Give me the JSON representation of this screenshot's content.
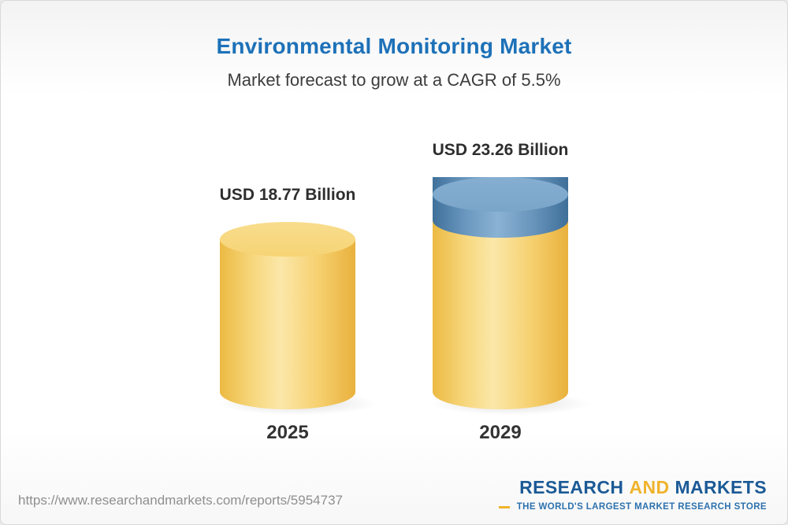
{
  "header": {
    "title": "Environmental Monitoring Market",
    "subtitle": "Market forecast to grow at a CAGR of 5.5%"
  },
  "chart_data": {
    "type": "bar",
    "title": "Environmental Monitoring Market",
    "subtitle": "Market forecast to grow at a CAGR of 5.5%",
    "cagr": "5.5%",
    "unit": "USD Billion",
    "categories": [
      "2025",
      "2029"
    ],
    "values": [
      18.77,
      23.26
    ],
    "value_labels": [
      "USD 18.77 Billion",
      "USD 23.26 Billion"
    ],
    "ylim": [
      0,
      23.26
    ],
    "grid": false,
    "legend": false,
    "colors": {
      "base": "#F5CE66",
      "growth": "#5B88AE"
    }
  },
  "footer": {
    "url": "https://www.researchandmarkets.com/reports/5954737",
    "logo": {
      "word1": "RESEARCH",
      "word2": "AND",
      "word3": "MARKETS",
      "tagline": "THE WORLD'S LARGEST MARKET RESEARCH STORE"
    }
  }
}
